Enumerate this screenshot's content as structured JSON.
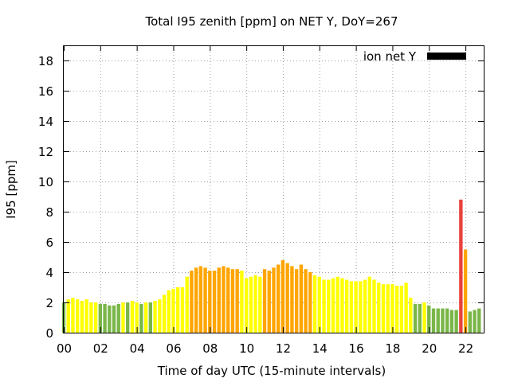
{
  "chart_data": {
    "type": "bar",
    "title": "Total I95 zenith [ppm] on NET Y, DoY=267",
    "xlabel": "Time of day UTC (15-minute intervals)",
    "ylabel": "I95 [ppm]",
    "xlim": [
      0,
      23
    ],
    "ylim": [
      0,
      19
    ],
    "x_ticks": [
      "00",
      "02",
      "04",
      "06",
      "08",
      "10",
      "12",
      "14",
      "16",
      "18",
      "20",
      "22"
    ],
    "y_ticks": [
      "0",
      "2",
      "4",
      "6",
      "8",
      "10",
      "12",
      "14",
      "16",
      "18"
    ],
    "grid": true,
    "legend": {
      "label": "ion net Y",
      "color": "#000000",
      "placement": "top-right"
    },
    "colors": {
      "green": "#7ab648",
      "yellow": "#ffff00",
      "orange": "#ffa500",
      "red": "#e8413c"
    },
    "interval_hours": 0.25,
    "values": [
      2.0,
      2.2,
      2.3,
      2.2,
      2.1,
      2.2,
      2.0,
      2.0,
      1.9,
      1.9,
      1.8,
      1.8,
      1.9,
      2.0,
      2.0,
      2.1,
      2.0,
      1.9,
      2.0,
      2.0,
      2.1,
      2.2,
      2.5,
      2.8,
      2.9,
      3.0,
      3.0,
      3.7,
      4.1,
      4.3,
      4.4,
      4.3,
      4.1,
      4.1,
      4.3,
      4.4,
      4.3,
      4.2,
      4.2,
      4.1,
      3.6,
      3.7,
      3.8,
      3.7,
      4.2,
      4.1,
      4.3,
      4.5,
      4.8,
      4.6,
      4.4,
      4.2,
      4.5,
      4.2,
      4.0,
      3.8,
      3.7,
      3.5,
      3.5,
      3.6,
      3.7,
      3.6,
      3.5,
      3.4,
      3.4,
      3.4,
      3.5,
      3.7,
      3.5,
      3.3,
      3.2,
      3.2,
      3.2,
      3.1,
      3.1,
      3.3,
      2.3,
      1.9,
      1.9,
      2.0,
      1.8,
      1.6,
      1.6,
      1.6,
      1.6,
      1.5,
      1.5,
      8.8,
      5.5,
      1.4,
      1.5,
      1.6
    ],
    "color_levels": [
      "green",
      "yellow",
      "yellow",
      "yellow",
      "yellow",
      "yellow",
      "yellow",
      "yellow",
      "green",
      "green",
      "green",
      "green",
      "green",
      "yellow",
      "green",
      "yellow",
      "yellow",
      "green",
      "yellow",
      "green",
      "yellow",
      "yellow",
      "yellow",
      "yellow",
      "yellow",
      "yellow",
      "yellow",
      "yellow",
      "orange",
      "orange",
      "orange",
      "orange",
      "orange",
      "orange",
      "orange",
      "orange",
      "orange",
      "orange",
      "orange",
      "yellow",
      "yellow",
      "yellow",
      "yellow",
      "yellow",
      "orange",
      "orange",
      "orange",
      "orange",
      "orange",
      "orange",
      "orange",
      "orange",
      "orange",
      "orange",
      "orange",
      "yellow",
      "yellow",
      "yellow",
      "yellow",
      "yellow",
      "yellow",
      "yellow",
      "yellow",
      "yellow",
      "yellow",
      "yellow",
      "yellow",
      "yellow",
      "yellow",
      "yellow",
      "yellow",
      "yellow",
      "yellow",
      "yellow",
      "yellow",
      "yellow",
      "yellow",
      "green",
      "green",
      "yellow",
      "green",
      "green",
      "green",
      "green",
      "green",
      "green",
      "green",
      "red",
      "orange",
      "green",
      "green",
      "green"
    ]
  }
}
